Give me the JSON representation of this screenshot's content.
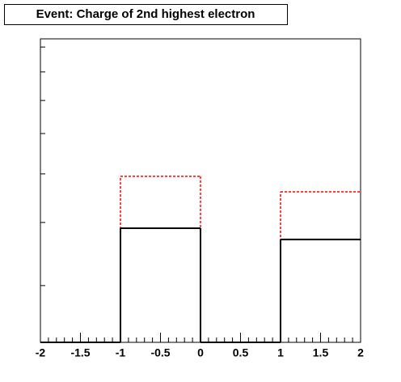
{
  "chart_data": {
    "type": "histogram",
    "title": "Event: Charge of 2nd highest electron",
    "bins": [
      -2,
      -1,
      0,
      1,
      2
    ],
    "series": [
      {
        "color": "#ff0000",
        "line_style": "dashed",
        "values": [
          0,
          0.547,
          0,
          0.496
        ]
      },
      {
        "color": "#000000",
        "line_style": "solid",
        "values": [
          0,
          0.376,
          0,
          0.339
        ]
      }
    ],
    "xlim": [
      -2,
      2
    ],
    "xticks": [
      -2,
      -1.5,
      -1,
      -0.5,
      0,
      0.5,
      1,
      1.5,
      2
    ],
    "ylim": [
      0,
      1
    ],
    "yticks": [
      0,
      0.187,
      0.395,
      0.555,
      0.688,
      0.797,
      0.891,
      0.973
    ]
  }
}
